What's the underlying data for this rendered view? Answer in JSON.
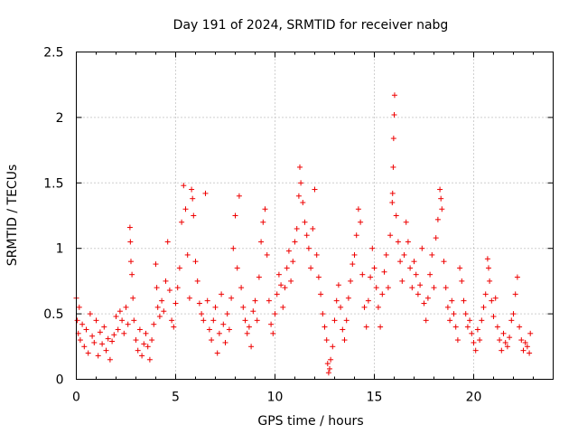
{
  "chart_data": {
    "type": "scatter",
    "title": "Day 191 of 2024, SRMTID for receiver nabg",
    "xlabel": "GPS time / hours",
    "ylabel": "SRMTID / TECUs",
    "xlim": [
      0,
      24
    ],
    "ylim": [
      0,
      2.5
    ],
    "xticks": [
      0,
      5,
      10,
      15,
      20
    ],
    "xtick_labels": [
      "0",
      "5",
      "10",
      "15",
      "20"
    ],
    "yticks": [
      0,
      0.5,
      1,
      1.5,
      2,
      2.5
    ],
    "ytick_labels": [
      "0",
      "0.5",
      "1",
      "1.5",
      "2",
      "2.5"
    ],
    "grid": true,
    "marker": "plus",
    "color": "#ee0000",
    "series": [
      {
        "name": "SRMTID",
        "points": [
          [
            0.0,
            0.62
          ],
          [
            0.05,
            0.45
          ],
          [
            0.1,
            0.35
          ],
          [
            0.15,
            0.55
          ],
          [
            0.2,
            0.3
          ],
          [
            0.3,
            0.42
          ],
          [
            0.4,
            0.25
          ],
          [
            0.5,
            0.38
          ],
          [
            0.6,
            0.2
          ],
          [
            0.7,
            0.5
          ],
          [
            0.8,
            0.33
          ],
          [
            0.9,
            0.28
          ],
          [
            1.0,
            0.45
          ],
          [
            1.1,
            0.18
          ],
          [
            1.2,
            0.36
          ],
          [
            1.3,
            0.27
          ],
          [
            1.4,
            0.4
          ],
          [
            1.5,
            0.22
          ],
          [
            1.6,
            0.31
          ],
          [
            1.7,
            0.15
          ],
          [
            1.8,
            0.29
          ],
          [
            1.9,
            0.34
          ],
          [
            2.0,
            0.48
          ],
          [
            2.1,
            0.38
          ],
          [
            2.2,
            0.52
          ],
          [
            2.3,
            0.45
          ],
          [
            2.4,
            0.35
          ],
          [
            2.5,
            0.55
          ],
          [
            2.6,
            0.42
          ],
          [
            2.7,
            1.16
          ],
          [
            2.72,
            1.05
          ],
          [
            2.75,
            0.9
          ],
          [
            2.8,
            0.8
          ],
          [
            2.85,
            0.62
          ],
          [
            2.9,
            0.45
          ],
          [
            3.0,
            0.3
          ],
          [
            3.1,
            0.22
          ],
          [
            3.2,
            0.38
          ],
          [
            3.3,
            0.18
          ],
          [
            3.4,
            0.27
          ],
          [
            3.5,
            0.35
          ],
          [
            3.6,
            0.25
          ],
          [
            3.7,
            0.15
          ],
          [
            3.8,
            0.3
          ],
          [
            3.9,
            0.42
          ],
          [
            4.0,
            0.88
          ],
          [
            4.05,
            0.7
          ],
          [
            4.1,
            0.55
          ],
          [
            4.2,
            0.48
          ],
          [
            4.3,
            0.6
          ],
          [
            4.4,
            0.52
          ],
          [
            4.5,
            0.75
          ],
          [
            4.6,
            1.05
          ],
          [
            4.7,
            0.68
          ],
          [
            4.8,
            0.45
          ],
          [
            4.9,
            0.4
          ],
          [
            5.0,
            0.58
          ],
          [
            5.1,
            0.7
          ],
          [
            5.2,
            0.85
          ],
          [
            5.3,
            1.2
          ],
          [
            5.4,
            1.48
          ],
          [
            5.5,
            1.3
          ],
          [
            5.6,
            0.95
          ],
          [
            5.7,
            0.62
          ],
          [
            5.8,
            1.45
          ],
          [
            5.85,
            1.38
          ],
          [
            5.9,
            1.25
          ],
          [
            6.0,
            0.9
          ],
          [
            6.1,
            0.75
          ],
          [
            6.2,
            0.58
          ],
          [
            6.3,
            0.5
          ],
          [
            6.4,
            0.45
          ],
          [
            6.5,
            1.42
          ],
          [
            6.6,
            0.6
          ],
          [
            6.7,
            0.38
          ],
          [
            6.8,
            0.3
          ],
          [
            6.9,
            0.45
          ],
          [
            7.0,
            0.55
          ],
          [
            7.1,
            0.2
          ],
          [
            7.2,
            0.35
          ],
          [
            7.3,
            0.65
          ],
          [
            7.4,
            0.42
          ],
          [
            7.5,
            0.28
          ],
          [
            7.6,
            0.5
          ],
          [
            7.7,
            0.38
          ],
          [
            7.8,
            0.62
          ],
          [
            7.9,
            1.0
          ],
          [
            8.0,
            1.25
          ],
          [
            8.1,
            0.85
          ],
          [
            8.2,
            1.4
          ],
          [
            8.3,
            0.7
          ],
          [
            8.4,
            0.55
          ],
          [
            8.5,
            0.45
          ],
          [
            8.6,
            0.35
          ],
          [
            8.7,
            0.4
          ],
          [
            8.8,
            0.25
          ],
          [
            8.9,
            0.52
          ],
          [
            9.0,
            0.6
          ],
          [
            9.1,
            0.45
          ],
          [
            9.2,
            0.78
          ],
          [
            9.3,
            1.05
          ],
          [
            9.4,
            1.2
          ],
          [
            9.5,
            1.3
          ],
          [
            9.6,
            0.95
          ],
          [
            9.7,
            0.6
          ],
          [
            9.8,
            0.42
          ],
          [
            9.9,
            0.35
          ],
          [
            10.0,
            0.5
          ],
          [
            10.1,
            0.65
          ],
          [
            10.2,
            0.8
          ],
          [
            10.3,
            0.72
          ],
          [
            10.4,
            0.55
          ],
          [
            10.5,
            0.7
          ],
          [
            10.6,
            0.85
          ],
          [
            10.7,
            0.98
          ],
          [
            10.8,
            0.75
          ],
          [
            10.9,
            0.9
          ],
          [
            11.0,
            1.05
          ],
          [
            11.1,
            1.15
          ],
          [
            11.2,
            1.4
          ],
          [
            11.25,
            1.62
          ],
          [
            11.3,
            1.5
          ],
          [
            11.4,
            1.35
          ],
          [
            11.5,
            1.2
          ],
          [
            11.6,
            1.1
          ],
          [
            11.7,
            1.0
          ],
          [
            11.8,
            0.85
          ],
          [
            11.9,
            1.15
          ],
          [
            12.0,
            1.45
          ],
          [
            12.1,
            0.95
          ],
          [
            12.2,
            0.78
          ],
          [
            12.3,
            0.65
          ],
          [
            12.4,
            0.5
          ],
          [
            12.5,
            0.4
          ],
          [
            12.6,
            0.3
          ],
          [
            12.65,
            0.12
          ],
          [
            12.7,
            0.05
          ],
          [
            12.75,
            0.08
          ],
          [
            12.8,
            0.15
          ],
          [
            12.9,
            0.25
          ],
          [
            13.0,
            0.45
          ],
          [
            13.1,
            0.6
          ],
          [
            13.2,
            0.72
          ],
          [
            13.3,
            0.55
          ],
          [
            13.4,
            0.38
          ],
          [
            13.5,
            0.3
          ],
          [
            13.6,
            0.45
          ],
          [
            13.7,
            0.62
          ],
          [
            13.8,
            0.75
          ],
          [
            13.9,
            0.88
          ],
          [
            14.0,
            0.95
          ],
          [
            14.1,
            1.1
          ],
          [
            14.2,
            1.3
          ],
          [
            14.3,
            1.2
          ],
          [
            14.4,
            0.8
          ],
          [
            14.5,
            0.55
          ],
          [
            14.6,
            0.4
          ],
          [
            14.7,
            0.6
          ],
          [
            14.8,
            0.78
          ],
          [
            14.9,
            1.0
          ],
          [
            15.0,
            0.85
          ],
          [
            15.1,
            0.7
          ],
          [
            15.2,
            0.55
          ],
          [
            15.3,
            0.4
          ],
          [
            15.4,
            0.65
          ],
          [
            15.5,
            0.82
          ],
          [
            15.6,
            0.95
          ],
          [
            15.7,
            0.7
          ],
          [
            15.8,
            1.1
          ],
          [
            15.9,
            1.35
          ],
          [
            15.92,
            1.42
          ],
          [
            15.95,
            1.62
          ],
          [
            15.97,
            1.84
          ],
          [
            16.0,
            2.02
          ],
          [
            16.02,
            2.17
          ],
          [
            16.1,
            1.25
          ],
          [
            16.2,
            1.05
          ],
          [
            16.3,
            0.9
          ],
          [
            16.4,
            0.75
          ],
          [
            16.5,
            0.95
          ],
          [
            16.6,
            1.2
          ],
          [
            16.7,
            1.05
          ],
          [
            16.8,
            0.85
          ],
          [
            16.9,
            0.7
          ],
          [
            17.0,
            0.9
          ],
          [
            17.1,
            0.8
          ],
          [
            17.2,
            0.65
          ],
          [
            17.3,
            0.72
          ],
          [
            17.4,
            1.0
          ],
          [
            17.5,
            0.58
          ],
          [
            17.6,
            0.45
          ],
          [
            17.7,
            0.62
          ],
          [
            17.8,
            0.8
          ],
          [
            17.9,
            0.95
          ],
          [
            18.0,
            0.7
          ],
          [
            18.1,
            1.08
          ],
          [
            18.2,
            1.22
          ],
          [
            18.3,
            1.45
          ],
          [
            18.35,
            1.38
          ],
          [
            18.4,
            1.3
          ],
          [
            18.5,
            0.9
          ],
          [
            18.6,
            0.7
          ],
          [
            18.7,
            0.55
          ],
          [
            18.8,
            0.45
          ],
          [
            18.9,
            0.6
          ],
          [
            19.0,
            0.5
          ],
          [
            19.1,
            0.4
          ],
          [
            19.2,
            0.3
          ],
          [
            19.3,
            0.85
          ],
          [
            19.4,
            0.75
          ],
          [
            19.5,
            0.6
          ],
          [
            19.6,
            0.5
          ],
          [
            19.7,
            0.4
          ],
          [
            19.8,
            0.45
          ],
          [
            19.9,
            0.35
          ],
          [
            20.0,
            0.28
          ],
          [
            20.1,
            0.22
          ],
          [
            20.2,
            0.38
          ],
          [
            20.3,
            0.3
          ],
          [
            20.4,
            0.45
          ],
          [
            20.5,
            0.55
          ],
          [
            20.6,
            0.65
          ],
          [
            20.7,
            0.92
          ],
          [
            20.75,
            0.85
          ],
          [
            20.8,
            0.75
          ],
          [
            20.9,
            0.6
          ],
          [
            21.0,
            0.48
          ],
          [
            21.1,
            0.62
          ],
          [
            21.2,
            0.4
          ],
          [
            21.3,
            0.3
          ],
          [
            21.4,
            0.22
          ],
          [
            21.5,
            0.35
          ],
          [
            21.6,
            0.28
          ],
          [
            21.7,
            0.25
          ],
          [
            21.8,
            0.32
          ],
          [
            21.9,
            0.45
          ],
          [
            22.0,
            0.5
          ],
          [
            22.1,
            0.65
          ],
          [
            22.2,
            0.78
          ],
          [
            22.3,
            0.4
          ],
          [
            22.4,
            0.3
          ],
          [
            22.5,
            0.22
          ],
          [
            22.6,
            0.28
          ],
          [
            22.7,
            0.25
          ],
          [
            22.8,
            0.2
          ],
          [
            22.85,
            0.35
          ]
        ]
      }
    ]
  }
}
